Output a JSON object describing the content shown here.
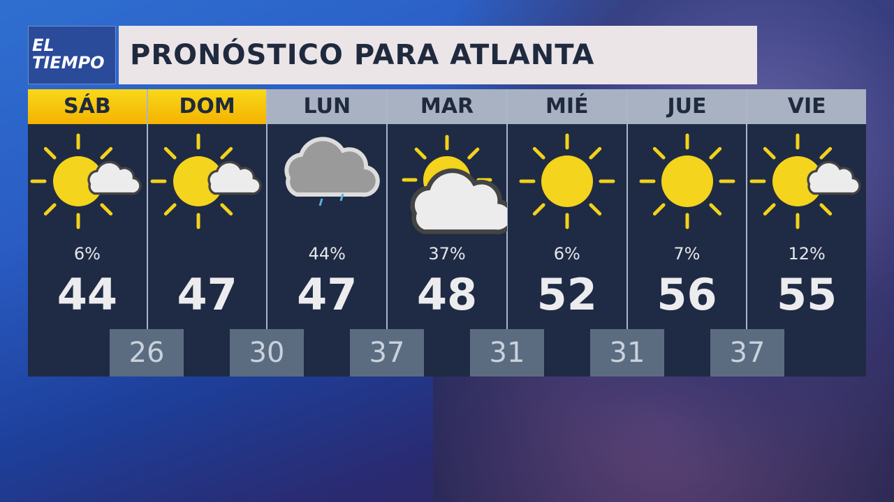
{
  "logo": {
    "line1": "EL",
    "line2": "TIEMPO"
  },
  "title": "PRONÓSTICO PARA ATLANTA",
  "colors": {
    "today_header": "#f6c90e",
    "header": "#a8b2c2",
    "panel": "#1f2b44",
    "low_box": "#5c6c80"
  },
  "days": [
    {
      "day": "SÁB",
      "icon": "sun-cloud-icon",
      "precip": "6%",
      "high": "44",
      "highlight": true
    },
    {
      "day": "DOM",
      "icon": "sun-cloud-icon",
      "precip": "",
      "high": "47",
      "highlight": true
    },
    {
      "day": "LUN",
      "icon": "cloud-rain-icon",
      "precip": "44%",
      "high": "47",
      "highlight": false
    },
    {
      "day": "MAR",
      "icon": "partly-cloudy-icon",
      "precip": "37%",
      "high": "48",
      "highlight": false
    },
    {
      "day": "MIÉ",
      "icon": "sun-icon",
      "precip": "6%",
      "high": "52",
      "highlight": false
    },
    {
      "day": "JUE",
      "icon": "sun-icon",
      "precip": "7%",
      "high": "56",
      "highlight": false
    },
    {
      "day": "VIE",
      "icon": "sun-cloud-icon",
      "precip": "12%",
      "high": "55",
      "highlight": false
    }
  ],
  "lows": [
    "26",
    "30",
    "37",
    "31",
    "31",
    "37"
  ]
}
